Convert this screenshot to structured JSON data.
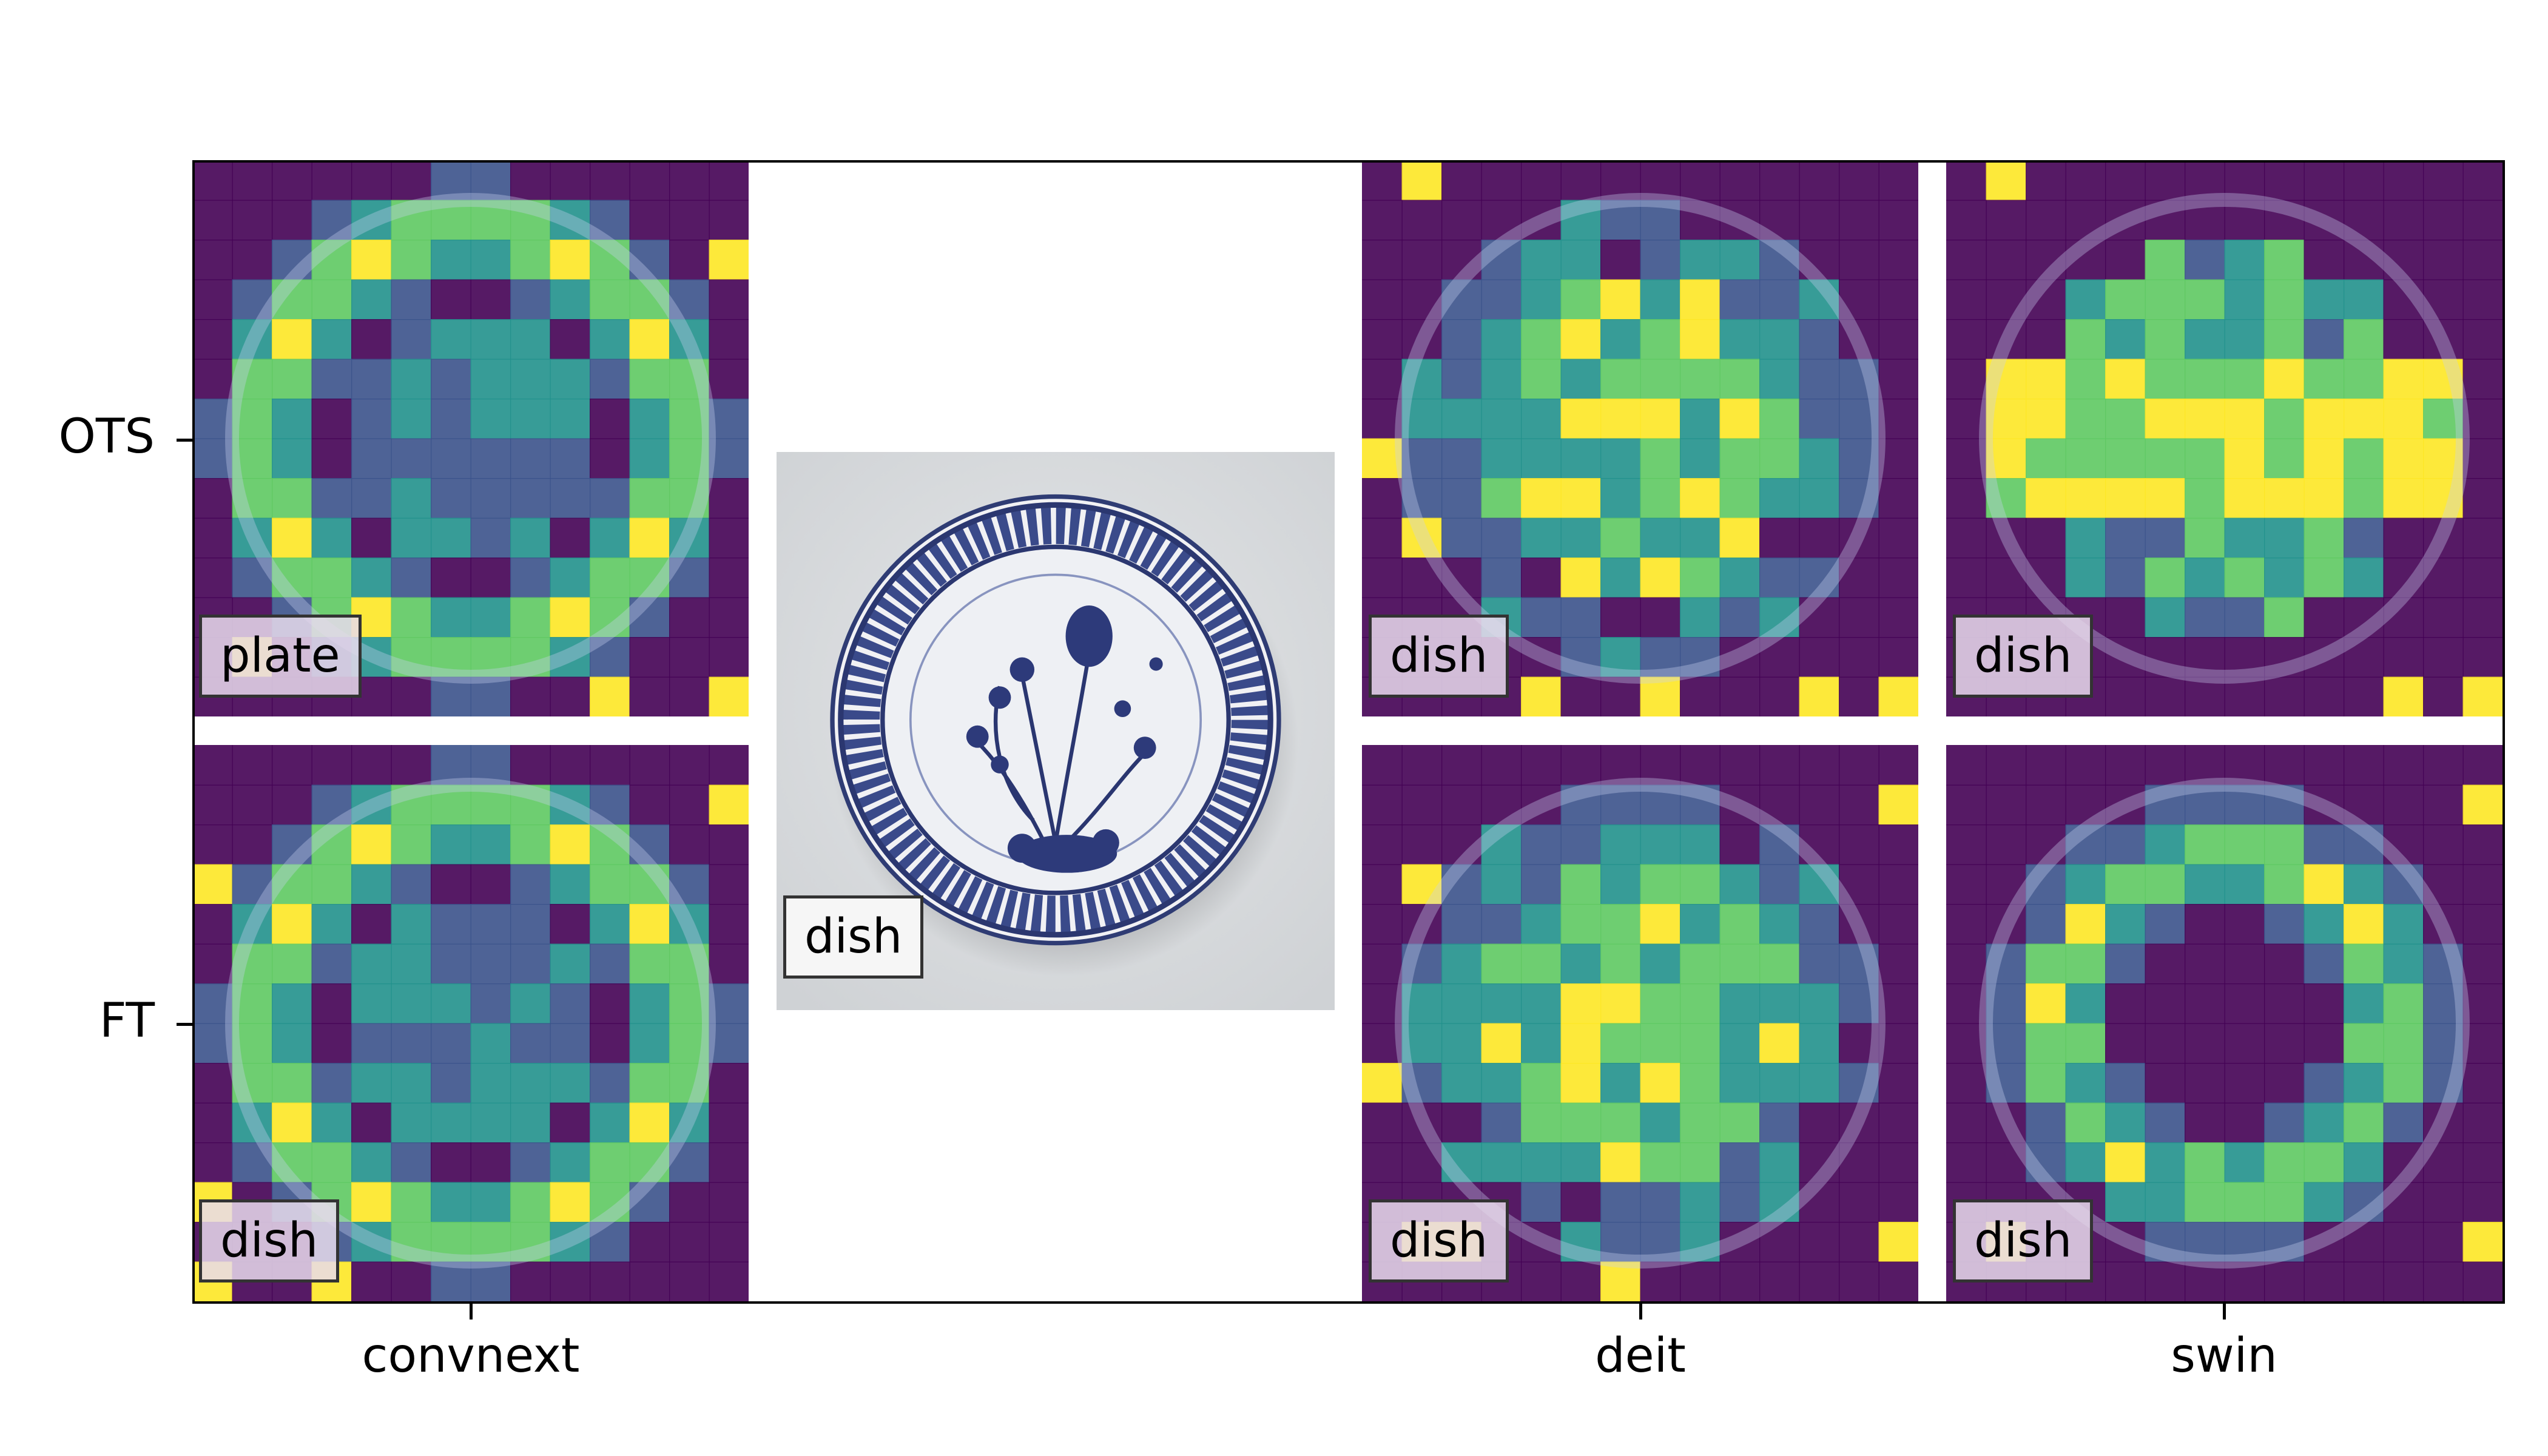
{
  "figure": {
    "row_labels": [
      "OTS",
      "FT"
    ],
    "column_labels": [
      "convnext",
      "deit",
      "swin"
    ],
    "input_image": {
      "caption": "dish",
      "content": "blue-and-white porcelain plate with floral decoration"
    },
    "panels": {
      "convnext_ots": {
        "label": "plate"
      },
      "convnext_ft": {
        "label": "dish"
      },
      "deit_ots": {
        "label": "dish"
      },
      "deit_ft": {
        "label": "dish"
      },
      "swin_ots": {
        "label": "dish"
      },
      "swin_ft": {
        "label": "dish"
      }
    },
    "colormap": [
      "#440154",
      "#3b528b",
      "#21918c",
      "#5ec962",
      "#fde725"
    ]
  }
}
